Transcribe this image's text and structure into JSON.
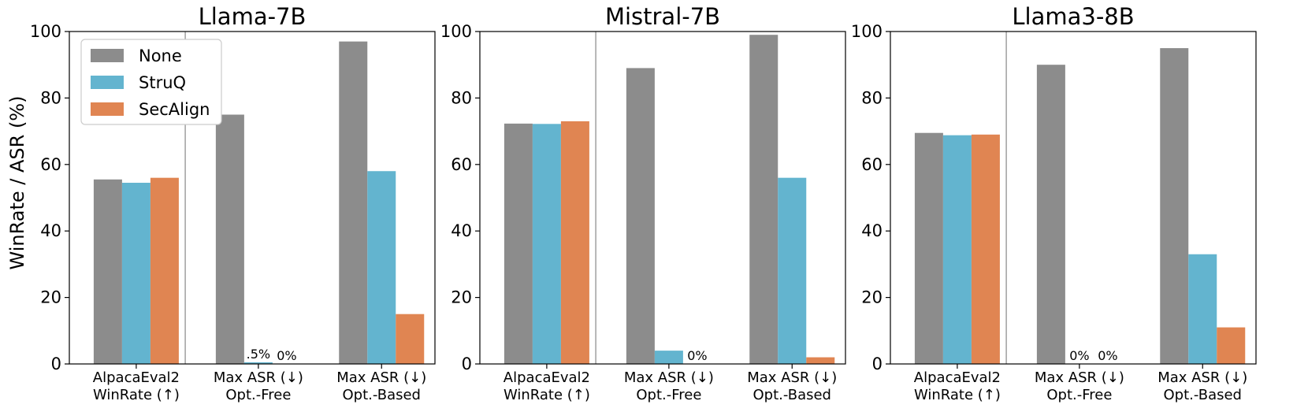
{
  "colors": {
    "None": "#8c8c8c",
    "StruQ": "#63b4cf",
    "SecAlign": "#e08552"
  },
  "ylabel": "WinRate / ASR (%)",
  "chart_data": [
    {
      "type": "bar",
      "title": "Llama-7B",
      "categories": [
        [
          "AlpacaEval2",
          "WinRate (↑)"
        ],
        [
          "Max ASR (↓)",
          "Opt.-Free"
        ],
        [
          "Max ASR (↓)",
          "Opt.-Based"
        ]
      ],
      "series": [
        {
          "name": "None",
          "values": [
            55.5,
            75,
            97
          ]
        },
        {
          "name": "StruQ",
          "values": [
            54.5,
            0.5,
            58
          ]
        },
        {
          "name": "SecAlign",
          "values": [
            56,
            0,
            15
          ]
        }
      ],
      "data_labels": [
        {
          "category": 1,
          "series": 1,
          "text": ".5%"
        },
        {
          "category": 1,
          "series": 2,
          "text": "0%"
        }
      ],
      "ylim": [
        0,
        100
      ],
      "yticks": [
        0,
        20,
        40,
        60,
        80,
        100
      ],
      "legend": "top-left"
    },
    {
      "type": "bar",
      "title": "Mistral-7B",
      "categories": [
        [
          "AlpacaEval2",
          "WinRate (↑)"
        ],
        [
          "Max ASR (↓)",
          "Opt.-Free"
        ],
        [
          "Max ASR (↓)",
          "Opt.-Based"
        ]
      ],
      "series": [
        {
          "name": "None",
          "values": [
            72.3,
            89,
            99
          ]
        },
        {
          "name": "StruQ",
          "values": [
            72.2,
            4,
            56
          ]
        },
        {
          "name": "SecAlign",
          "values": [
            73,
            0,
            2
          ]
        }
      ],
      "data_labels": [
        {
          "category": 1,
          "series": 2,
          "text": "0%"
        }
      ],
      "ylim": [
        0,
        100
      ],
      "yticks": [
        0,
        20,
        40,
        60,
        80,
        100
      ]
    },
    {
      "type": "bar",
      "title": "Llama3-8B",
      "categories": [
        [
          "AlpacaEval2",
          "WinRate (↑)"
        ],
        [
          "Max ASR (↓)",
          "Opt.-Free"
        ],
        [
          "Max ASR (↓)",
          "Opt.-Based"
        ]
      ],
      "series": [
        {
          "name": "None",
          "values": [
            69.5,
            90,
            95
          ]
        },
        {
          "name": "StruQ",
          "values": [
            68.8,
            0,
            33
          ]
        },
        {
          "name": "SecAlign",
          "values": [
            69,
            0,
            11
          ]
        }
      ],
      "data_labels": [
        {
          "category": 1,
          "series": 1,
          "text": "0%"
        },
        {
          "category": 1,
          "series": 2,
          "text": "0%"
        }
      ],
      "ylim": [
        0,
        100
      ],
      "yticks": [
        0,
        20,
        40,
        60,
        80,
        100
      ]
    }
  ]
}
